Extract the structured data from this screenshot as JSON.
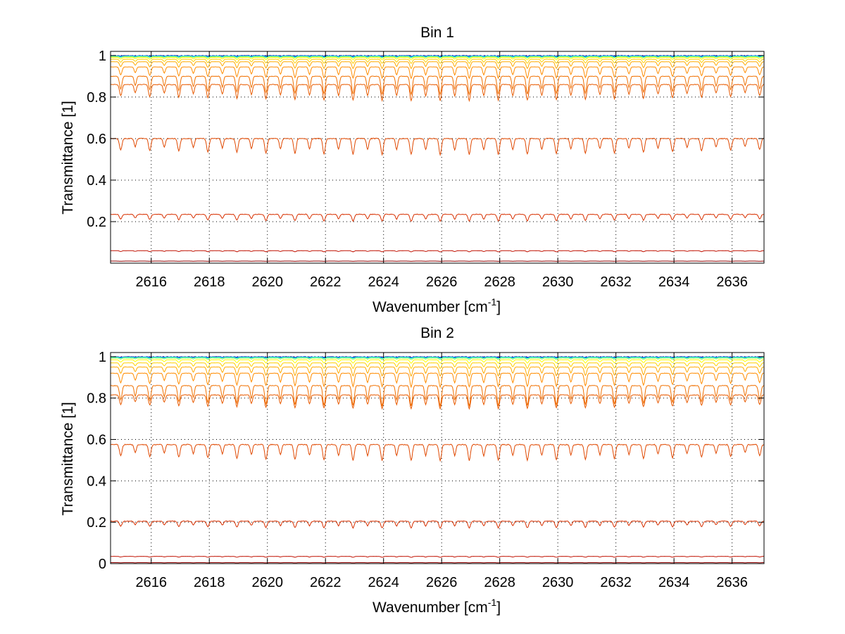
{
  "chart_data": [
    {
      "type": "line",
      "title": "Bin 1",
      "xlabel": "Wavenumber [cm",
      "xlabel_sup": "-1",
      "xlabel_end": "]",
      "ylabel": "Transmittance [1]",
      "xlim": [
        2614.6,
        2637.1
      ],
      "ylim": [
        0.0,
        1.02
      ],
      "x_ticks": [
        2616,
        2618,
        2620,
        2622,
        2624,
        2626,
        2628,
        2630,
        2632,
        2634,
        2636
      ],
      "y_ticks": [
        0.2,
        0.4,
        0.6,
        0.8,
        1
      ],
      "y_tick_labels": [
        "0.2",
        "0.4",
        "0.6",
        "0.8",
        "1"
      ],
      "grid": true,
      "series": [
        {
          "color": "#00008f",
          "baseline": 0.999,
          "depth": 0.002,
          "noise": 0.003
        },
        {
          "color": "#0060ff",
          "baseline": 0.998,
          "depth": 0.003,
          "noise": 0.002
        },
        {
          "color": "#00cfff",
          "baseline": 0.997,
          "depth": 0.004,
          "noise": 0.002
        },
        {
          "color": "#40ffbf",
          "baseline": 0.996,
          "depth": 0.005,
          "noise": 0.001
        },
        {
          "color": "#a0ff60",
          "baseline": 0.994,
          "depth": 0.006,
          "noise": 0.001
        },
        {
          "color": "#ffff00",
          "baseline": 0.99,
          "depth": 0.01,
          "noise": 0.001
        },
        {
          "color": "#ffd000",
          "baseline": 0.982,
          "depth": 0.018,
          "noise": 0.001
        },
        {
          "color": "#ffaa00",
          "baseline": 0.97,
          "depth": 0.03,
          "noise": 0.001
        },
        {
          "color": "#ff8c00",
          "baseline": 0.945,
          "depth": 0.05,
          "noise": 0.001
        },
        {
          "color": "#f07000",
          "baseline": 0.9,
          "depth": 0.08,
          "noise": 0.002
        },
        {
          "color": "#e85a00",
          "baseline": 0.86,
          "depth": 0.07,
          "noise": 0.003
        },
        {
          "color": "#e04800",
          "baseline": 0.6,
          "depth": 0.07,
          "noise": 0.004
        },
        {
          "color": "#d83000",
          "baseline": 0.235,
          "depth": 0.03,
          "noise": 0.003
        },
        {
          "color": "#c01000",
          "baseline": 0.06,
          "depth": 0.005,
          "noise": 0.001
        },
        {
          "color": "#8f0000",
          "baseline": 0.01,
          "depth": 0.001,
          "noise": 0.0
        }
      ]
    },
    {
      "type": "line",
      "title": "Bin 2",
      "xlabel": "Wavenumber [cm",
      "xlabel_sup": "-1",
      "xlabel_end": "]",
      "ylabel": "Transmittance [1]",
      "xlim": [
        2614.6,
        2637.1
      ],
      "ylim": [
        0.0,
        1.02
      ],
      "x_ticks": [
        2616,
        2618,
        2620,
        2622,
        2624,
        2626,
        2628,
        2630,
        2632,
        2634,
        2636
      ],
      "y_ticks": [
        0,
        0.2,
        0.4,
        0.6,
        0.8,
        1
      ],
      "y_tick_labels": [
        "0",
        "0.2",
        "0.4",
        "0.6",
        "0.8",
        "1"
      ],
      "grid": true,
      "series": [
        {
          "color": "#00008f",
          "baseline": 0.999,
          "depth": 0.002,
          "noise": 0.003
        },
        {
          "color": "#0060ff",
          "baseline": 0.998,
          "depth": 0.003,
          "noise": 0.002
        },
        {
          "color": "#00cfff",
          "baseline": 0.997,
          "depth": 0.004,
          "noise": 0.002
        },
        {
          "color": "#40ffbf",
          "baseline": 0.996,
          "depth": 0.005,
          "noise": 0.001
        },
        {
          "color": "#a0ff60",
          "baseline": 0.993,
          "depth": 0.007,
          "noise": 0.001
        },
        {
          "color": "#ffff00",
          "baseline": 0.985,
          "depth": 0.015,
          "noise": 0.001
        },
        {
          "color": "#ffd000",
          "baseline": 0.97,
          "depth": 0.025,
          "noise": 0.001
        },
        {
          "color": "#ffaa00",
          "baseline": 0.95,
          "depth": 0.04,
          "noise": 0.001
        },
        {
          "color": "#ff8c00",
          "baseline": 0.92,
          "depth": 0.06,
          "noise": 0.002
        },
        {
          "color": "#f07000",
          "baseline": 0.86,
          "depth": 0.09,
          "noise": 0.003
        },
        {
          "color": "#e85a00",
          "baseline": 0.815,
          "depth": 0.06,
          "noise": 0.003
        },
        {
          "color": "#e04800",
          "baseline": 0.575,
          "depth": 0.07,
          "noise": 0.004
        },
        {
          "color": "#d83000",
          "baseline": 0.205,
          "depth": 0.03,
          "noise": 0.003
        },
        {
          "color": "#c01000",
          "baseline": 0.035,
          "depth": 0.004,
          "noise": 0.001
        },
        {
          "color": "#8f0000",
          "baseline": 0.005,
          "depth": 0.001,
          "noise": 0.0
        }
      ]
    }
  ]
}
